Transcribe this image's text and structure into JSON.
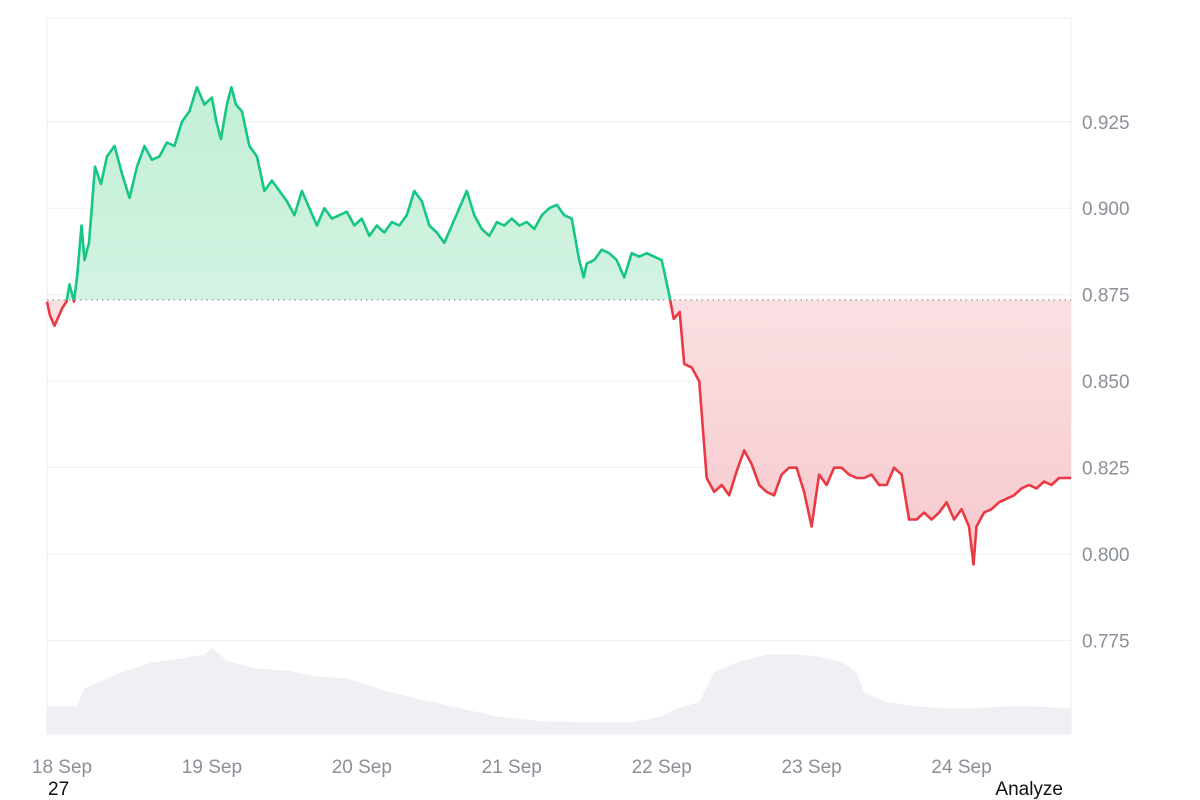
{
  "chart_data": {
    "type": "line",
    "x_labels": [
      "18 Sep",
      "19 Sep",
      "20 Sep",
      "21 Sep",
      "22 Sep",
      "23 Sep",
      "24 Sep"
    ],
    "x_range": [
      17.9,
      24.73
    ],
    "ylim": [
      0.748,
      0.955
    ],
    "y_ticks": [
      0.775,
      0.8,
      0.825,
      0.85,
      0.875,
      0.9,
      0.925
    ],
    "y_tick_labels": [
      "0.775",
      "0.800",
      "0.825",
      "0.850",
      "0.875",
      "0.900",
      "0.925"
    ],
    "baseline": 0.8735,
    "grid": true,
    "series": [
      {
        "kind": "price",
        "points": [
          [
            17.9,
            0.873
          ],
          [
            17.92,
            0.869
          ],
          [
            17.95,
            0.866
          ],
          [
            17.98,
            0.869
          ],
          [
            18.0,
            0.871
          ],
          [
            18.03,
            0.873
          ],
          [
            18.05,
            0.878
          ],
          [
            18.08,
            0.873
          ],
          [
            18.1,
            0.88
          ],
          [
            18.13,
            0.895
          ],
          [
            18.15,
            0.885
          ],
          [
            18.18,
            0.89
          ],
          [
            18.22,
            0.912
          ],
          [
            18.26,
            0.907
          ],
          [
            18.3,
            0.915
          ],
          [
            18.35,
            0.918
          ],
          [
            18.4,
            0.91
          ],
          [
            18.45,
            0.903
          ],
          [
            18.5,
            0.912
          ],
          [
            18.55,
            0.918
          ],
          [
            18.6,
            0.914
          ],
          [
            18.65,
            0.915
          ],
          [
            18.7,
            0.919
          ],
          [
            18.75,
            0.918
          ],
          [
            18.8,
            0.925
          ],
          [
            18.85,
            0.928
          ],
          [
            18.9,
            0.935
          ],
          [
            18.95,
            0.93
          ],
          [
            19.0,
            0.932
          ],
          [
            19.03,
            0.925
          ],
          [
            19.06,
            0.92
          ],
          [
            19.1,
            0.93
          ],
          [
            19.13,
            0.935
          ],
          [
            19.16,
            0.93
          ],
          [
            19.2,
            0.928
          ],
          [
            19.25,
            0.918
          ],
          [
            19.3,
            0.915
          ],
          [
            19.35,
            0.905
          ],
          [
            19.4,
            0.908
          ],
          [
            19.45,
            0.905
          ],
          [
            19.5,
            0.902
          ],
          [
            19.55,
            0.898
          ],
          [
            19.6,
            0.905
          ],
          [
            19.65,
            0.9
          ],
          [
            19.7,
            0.895
          ],
          [
            19.75,
            0.9
          ],
          [
            19.8,
            0.897
          ],
          [
            19.85,
            0.898
          ],
          [
            19.9,
            0.899
          ],
          [
            19.95,
            0.895
          ],
          [
            20.0,
            0.897
          ],
          [
            20.05,
            0.892
          ],
          [
            20.1,
            0.895
          ],
          [
            20.15,
            0.893
          ],
          [
            20.2,
            0.896
          ],
          [
            20.25,
            0.895
          ],
          [
            20.3,
            0.898
          ],
          [
            20.35,
            0.905
          ],
          [
            20.4,
            0.902
          ],
          [
            20.45,
            0.895
          ],
          [
            20.5,
            0.893
          ],
          [
            20.55,
            0.89
          ],
          [
            20.6,
            0.895
          ],
          [
            20.65,
            0.9
          ],
          [
            20.7,
            0.905
          ],
          [
            20.75,
            0.898
          ],
          [
            20.8,
            0.894
          ],
          [
            20.85,
            0.892
          ],
          [
            20.9,
            0.896
          ],
          [
            20.95,
            0.895
          ],
          [
            21.0,
            0.897
          ],
          [
            21.05,
            0.895
          ],
          [
            21.1,
            0.896
          ],
          [
            21.15,
            0.894
          ],
          [
            21.2,
            0.898
          ],
          [
            21.25,
            0.9
          ],
          [
            21.3,
            0.901
          ],
          [
            21.35,
            0.898
          ],
          [
            21.4,
            0.897
          ],
          [
            21.45,
            0.885
          ],
          [
            21.48,
            0.88
          ],
          [
            21.5,
            0.884
          ],
          [
            21.55,
            0.885
          ],
          [
            21.6,
            0.888
          ],
          [
            21.65,
            0.887
          ],
          [
            21.7,
            0.885
          ],
          [
            21.75,
            0.88
          ],
          [
            21.8,
            0.887
          ],
          [
            21.85,
            0.886
          ],
          [
            21.9,
            0.887
          ],
          [
            21.95,
            0.886
          ],
          [
            22.0,
            0.885
          ],
          [
            22.05,
            0.875
          ],
          [
            22.08,
            0.868
          ],
          [
            22.12,
            0.87
          ],
          [
            22.15,
            0.855
          ],
          [
            22.2,
            0.854
          ],
          [
            22.25,
            0.85
          ],
          [
            22.3,
            0.822
          ],
          [
            22.35,
            0.818
          ],
          [
            22.4,
            0.82
          ],
          [
            22.45,
            0.817
          ],
          [
            22.5,
            0.824
          ],
          [
            22.55,
            0.83
          ],
          [
            22.6,
            0.826
          ],
          [
            22.65,
            0.82
          ],
          [
            22.7,
            0.818
          ],
          [
            22.75,
            0.817
          ],
          [
            22.8,
            0.823
          ],
          [
            22.85,
            0.825
          ],
          [
            22.9,
            0.825
          ],
          [
            22.95,
            0.818
          ],
          [
            23.0,
            0.808
          ],
          [
            23.05,
            0.823
          ],
          [
            23.1,
            0.82
          ],
          [
            23.15,
            0.825
          ],
          [
            23.2,
            0.825
          ],
          [
            23.25,
            0.823
          ],
          [
            23.3,
            0.822
          ],
          [
            23.35,
            0.822
          ],
          [
            23.4,
            0.823
          ],
          [
            23.45,
            0.82
          ],
          [
            23.5,
            0.82
          ],
          [
            23.55,
            0.825
          ],
          [
            23.6,
            0.823
          ],
          [
            23.65,
            0.81
          ],
          [
            23.7,
            0.81
          ],
          [
            23.75,
            0.812
          ],
          [
            23.8,
            0.81
          ],
          [
            23.85,
            0.812
          ],
          [
            23.9,
            0.815
          ],
          [
            23.95,
            0.81
          ],
          [
            24.0,
            0.813
          ],
          [
            24.05,
            0.808
          ],
          [
            24.08,
            0.797
          ],
          [
            24.1,
            0.808
          ],
          [
            24.15,
            0.812
          ],
          [
            24.2,
            0.813
          ],
          [
            24.25,
            0.815
          ],
          [
            24.3,
            0.816
          ],
          [
            24.35,
            0.817
          ],
          [
            24.4,
            0.819
          ],
          [
            24.45,
            0.82
          ],
          [
            24.5,
            0.819
          ],
          [
            24.55,
            0.821
          ],
          [
            24.6,
            0.82
          ],
          [
            24.65,
            0.822
          ],
          [
            24.7,
            0.822
          ],
          [
            24.73,
            0.822
          ]
        ]
      },
      {
        "kind": "volume",
        "points": [
          [
            17.9,
            0.756
          ],
          [
            18.1,
            0.756
          ],
          [
            18.15,
            0.7612
          ],
          [
            18.4,
            0.7658
          ],
          [
            18.6,
            0.7687
          ],
          [
            18.8,
            0.7698
          ],
          [
            18.95,
            0.771
          ],
          [
            19.0,
            0.7729
          ],
          [
            19.1,
            0.7692
          ],
          [
            19.3,
            0.7669
          ],
          [
            19.5,
            0.7664
          ],
          [
            19.7,
            0.7646
          ],
          [
            19.9,
            0.7641
          ],
          [
            20.1,
            0.7612
          ],
          [
            20.3,
            0.7589
          ],
          [
            20.6,
            0.756
          ],
          [
            20.9,
            0.7531
          ],
          [
            21.2,
            0.7517
          ],
          [
            21.5,
            0.7514
          ],
          [
            21.8,
            0.7514
          ],
          [
            22.0,
            0.7531
          ],
          [
            22.1,
            0.7554
          ],
          [
            22.25,
            0.7572
          ],
          [
            22.35,
            0.7658
          ],
          [
            22.5,
            0.7687
          ],
          [
            22.7,
            0.771
          ],
          [
            22.9,
            0.771
          ],
          [
            23.05,
            0.7704
          ],
          [
            23.2,
            0.7689
          ],
          [
            23.3,
            0.7658
          ],
          [
            23.35,
            0.76
          ],
          [
            23.5,
            0.7572
          ],
          [
            23.7,
            0.756
          ],
          [
            23.9,
            0.7554
          ],
          [
            24.1,
            0.7554
          ],
          [
            24.3,
            0.756
          ],
          [
            24.5,
            0.756
          ],
          [
            24.73,
            0.7554
          ]
        ]
      }
    ]
  },
  "colors": {
    "up": "#16c784",
    "down": "#ea3943",
    "up_fill_top": "#bfeed5",
    "down_fill_bottom": "#f6c6cb",
    "volume": "#eef0f3",
    "grid": "#eceef1",
    "axis_text": "#8a8f98"
  },
  "footer": {
    "left": "27",
    "right": "Analyze"
  }
}
